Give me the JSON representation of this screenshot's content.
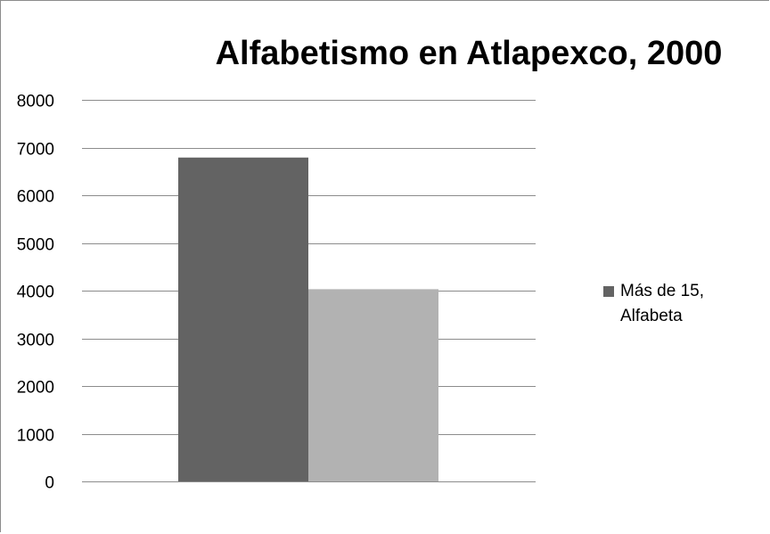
{
  "chart_data": {
    "type": "bar",
    "title": "Alfabetismo en Atlapexco, 2000",
    "xlabel": "",
    "ylabel": "",
    "ylim": [
      0,
      8000
    ],
    "yticks": [
      0,
      1000,
      2000,
      3000,
      4000,
      5000,
      6000,
      7000,
      8000
    ],
    "grid": true,
    "legend_position": "right",
    "bars": [
      {
        "value": 6790,
        "color": "#636363"
      },
      {
        "value": 4030,
        "color": "#b2b2b2"
      }
    ],
    "legend": [
      {
        "label": "Más de 15, Alfabeta",
        "color": "#636363"
      }
    ]
  }
}
